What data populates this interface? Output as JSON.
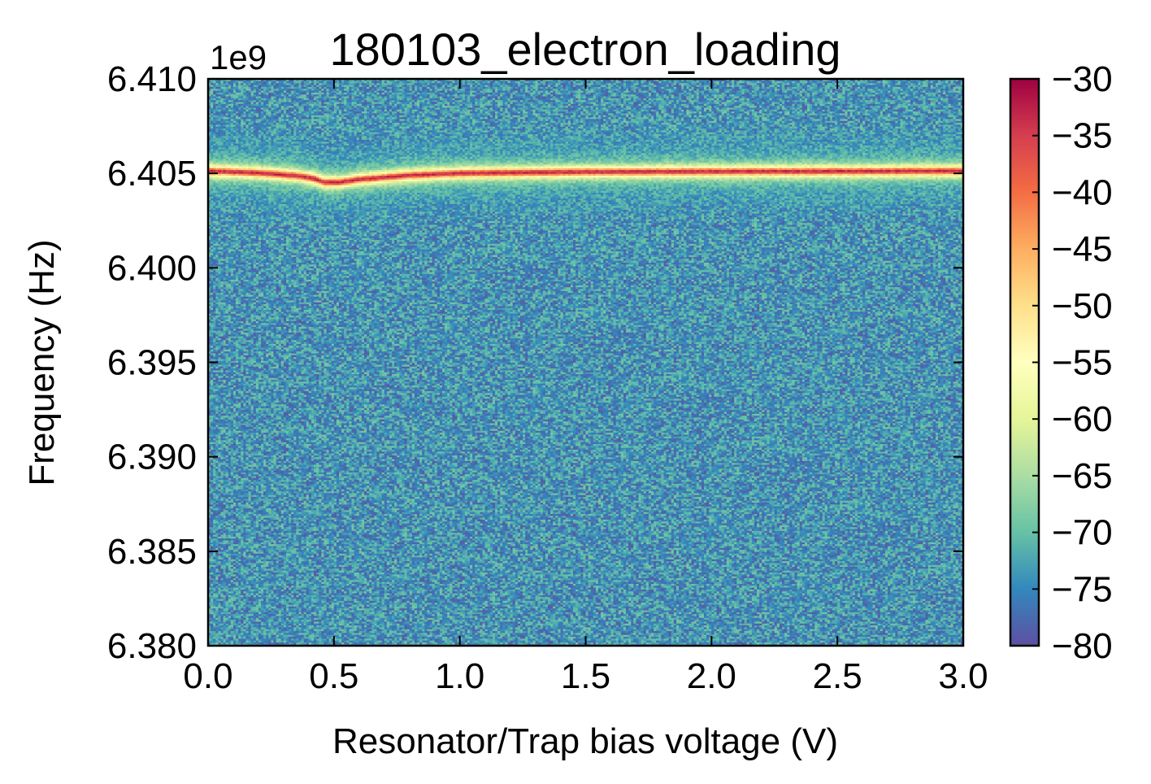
{
  "chart_data": {
    "type": "heatmap",
    "title": "180103_electron_loading",
    "xlabel": "Resonator/Trap bias voltage (V)",
    "ylabel": "Frequency (Hz)",
    "y_offset_label": "1e9",
    "xlim": [
      0.0,
      3.0
    ],
    "ylim": [
      6.38,
      6.41
    ],
    "x_ticks": [
      0.0,
      0.5,
      1.0,
      1.5,
      2.0,
      2.5,
      3.0
    ],
    "x_tick_labels": [
      "0.0",
      "0.5",
      "1.0",
      "1.5",
      "2.0",
      "2.5",
      "3.0"
    ],
    "y_ticks": [
      6.38,
      6.385,
      6.39,
      6.395,
      6.4,
      6.405,
      6.41
    ],
    "y_tick_labels": [
      "6.380",
      "6.385",
      "6.390",
      "6.395",
      "6.400",
      "6.405",
      "6.410"
    ],
    "colorbar": {
      "range": [
        -80,
        -30
      ],
      "ticks": [
        -80,
        -75,
        -70,
        -65,
        -60,
        -55,
        -50,
        -45,
        -40,
        -35,
        -30
      ],
      "tick_labels": [
        "−80",
        "−75",
        "−70",
        "−65",
        "−60",
        "−55",
        "−50",
        "−45",
        "−40",
        "−35",
        "−30"
      ],
      "colormap": "Spectral_r",
      "colors": [
        "#5e4fa2",
        "#3288bd",
        "#66c2a5",
        "#abdda4",
        "#e6f598",
        "#ffffbf",
        "#fee08b",
        "#fdae61",
        "#f46d43",
        "#d53e4f",
        "#9e0142"
      ]
    },
    "resonance": {
      "points": [
        {
          "x": 0.0,
          "y": 6.40515
        },
        {
          "x": 0.2,
          "y": 6.40505
        },
        {
          "x": 0.35,
          "y": 6.4049
        },
        {
          "x": 0.42,
          "y": 6.40475
        },
        {
          "x": 0.46,
          "y": 6.40455
        },
        {
          "x": 0.52,
          "y": 6.40455
        },
        {
          "x": 0.6,
          "y": 6.4047
        },
        {
          "x": 0.8,
          "y": 6.40492
        },
        {
          "x": 1.0,
          "y": 6.40503
        },
        {
          "x": 1.5,
          "y": 6.4051
        },
        {
          "x": 2.0,
          "y": 6.40512
        },
        {
          "x": 2.5,
          "y": 6.40513
        },
        {
          "x": 3.0,
          "y": 6.40515
        }
      ],
      "peak_level": -33,
      "noise_floor": -74
    }
  }
}
